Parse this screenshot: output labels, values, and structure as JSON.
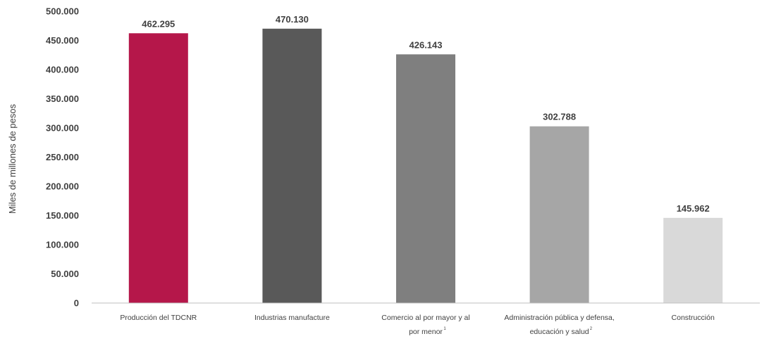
{
  "chart_data": {
    "type": "bar",
    "title": "",
    "xlabel": "",
    "ylabel": "Miles de millones de pesos",
    "ylim": [
      0,
      500000
    ],
    "yticks": [
      "0",
      "50.000",
      "100.000",
      "150.000",
      "200.000",
      "250.000",
      "300.000",
      "350.000",
      "400.000",
      "450.000",
      "500.000"
    ],
    "grid": false,
    "legend": "none",
    "categories": [
      {
        "lines": [
          "Producción del TDCNR"
        ],
        "sup": ""
      },
      {
        "lines": [
          "Industrias manufacture"
        ],
        "sup": ""
      },
      {
        "lines": [
          "Comercio al por mayor y al",
          "por menor"
        ],
        "sup": "1"
      },
      {
        "lines": [
          "Administración pública y defensa,",
          "educación y salud"
        ],
        "sup": "2"
      },
      {
        "lines": [
          "Construcción"
        ],
        "sup": ""
      }
    ],
    "values": [
      462295,
      470130,
      426143,
      302788,
      145962
    ],
    "data_labels": [
      "462.295",
      "470.130",
      "426.143",
      "302.788",
      "145.962"
    ],
    "colors": [
      "#B5174A",
      "#595959",
      "#7F7F7F",
      "#A6A6A6",
      "#D9D9D9"
    ],
    "axis_color": "#BFBFBF"
  }
}
